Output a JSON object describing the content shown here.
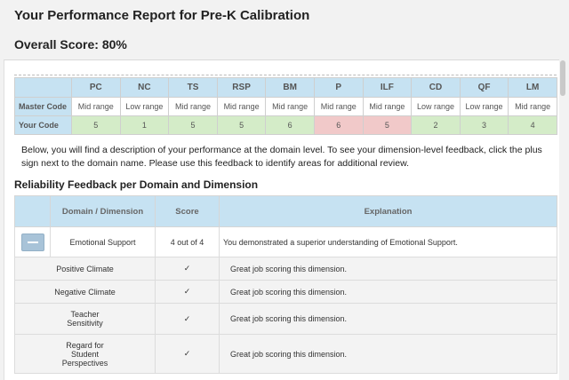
{
  "report": {
    "title": "Your Performance Report for Pre-K Calibration",
    "overall_score": "Overall Score: 80%"
  },
  "score_table": {
    "columns": [
      "PC",
      "NC",
      "TS",
      "RSP",
      "BM",
      "P",
      "ILF",
      "CD",
      "QF",
      "LM"
    ],
    "master_label": "Master Code",
    "your_label": "Your Code",
    "master": [
      "Mid range",
      "Low range",
      "Mid range",
      "Mid range",
      "Mid range",
      "Mid range",
      "Mid range",
      "Low range",
      "Low range",
      "Mid range"
    ],
    "yours": [
      "5",
      "1",
      "5",
      "5",
      "6",
      "6",
      "5",
      "2",
      "3",
      "4"
    ],
    "mismatch_colors": {
      "match": "#d4ecc8",
      "mismatch": "#f1c9c9"
    }
  },
  "description": "Below, you will find a description of your performance at the domain level. To see your dimension-level feedback, click the plus sign next to the domain name. Please use this feedback to identify areas for additional review.",
  "reliability": {
    "title": "Reliability Feedback per Domain and Dimension",
    "headers": {
      "domain": "Domain / Dimension",
      "score": "Score",
      "explanation": "Explanation"
    },
    "domain": {
      "name": "Emotional Support",
      "score": "4 out of 4",
      "explanation": "You demonstrated a superior understanding of Emotional Support.",
      "collapse_icon": "minus-icon"
    },
    "dimensions": [
      {
        "name": "Positive Climate",
        "check": "✓",
        "explanation": "Great job scoring this dimension."
      },
      {
        "name": "Negative Climate",
        "check": "✓",
        "explanation": "Great job scoring this dimension."
      },
      {
        "name": "Teacher Sensitivity",
        "check": "✓",
        "explanation": "Great job scoring this dimension."
      },
      {
        "name": "Regard for Student Perspectives",
        "check": "✓",
        "explanation": "Great job scoring this dimension."
      }
    ]
  },
  "colors": {
    "header_blue": "#c6e2f2",
    "button_blue": "#a8c3d8"
  }
}
